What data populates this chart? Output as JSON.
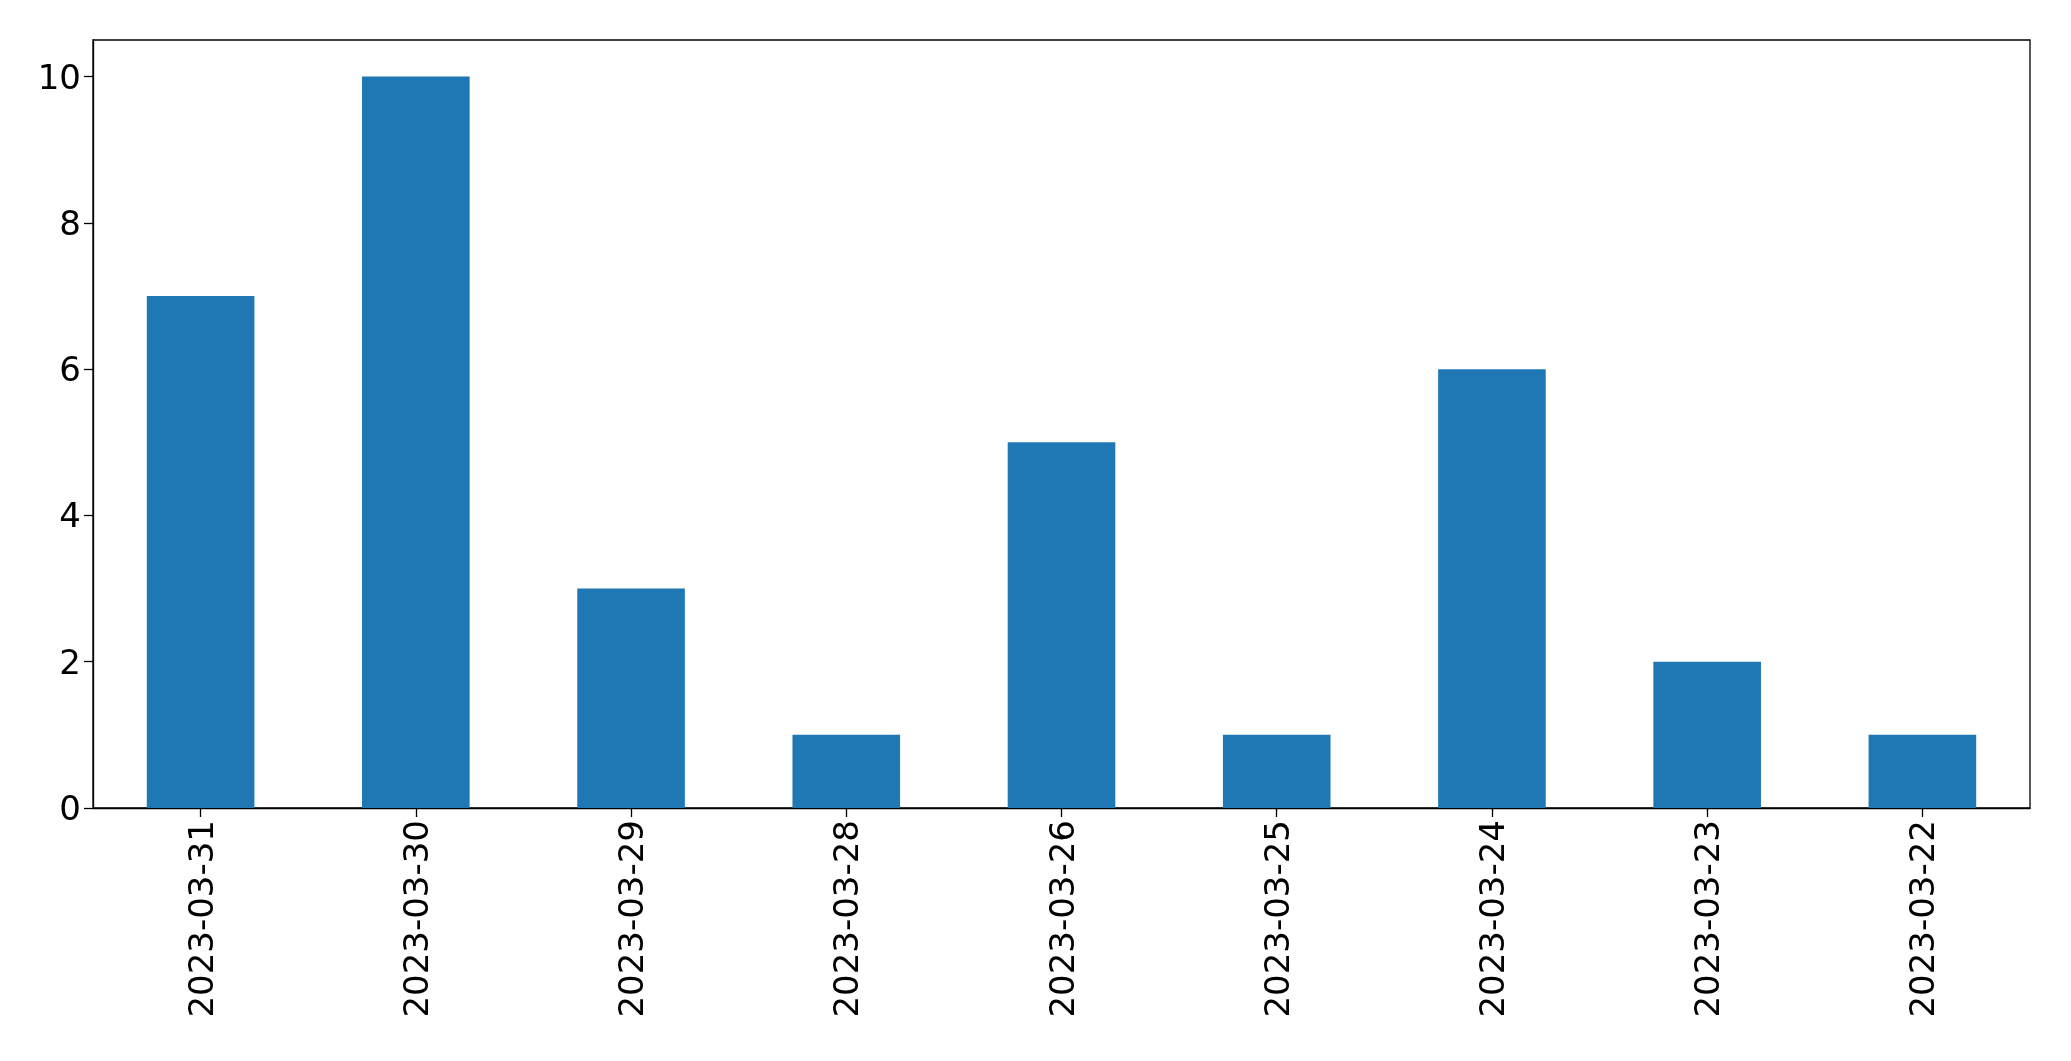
{
  "chart_data": {
    "type": "bar",
    "categories": [
      "2023-03-31",
      "2023-03-30",
      "2023-03-29",
      "2023-03-28",
      "2023-03-26",
      "2023-03-25",
      "2023-03-24",
      "2023-03-23",
      "2023-03-22"
    ],
    "values": [
      7,
      10,
      3,
      1,
      5,
      1,
      6,
      2,
      1
    ],
    "color": "#1f77b4",
    "ylim": [
      0,
      10.5
    ],
    "yticks": [
      0,
      2,
      4,
      6,
      8,
      10
    ]
  }
}
